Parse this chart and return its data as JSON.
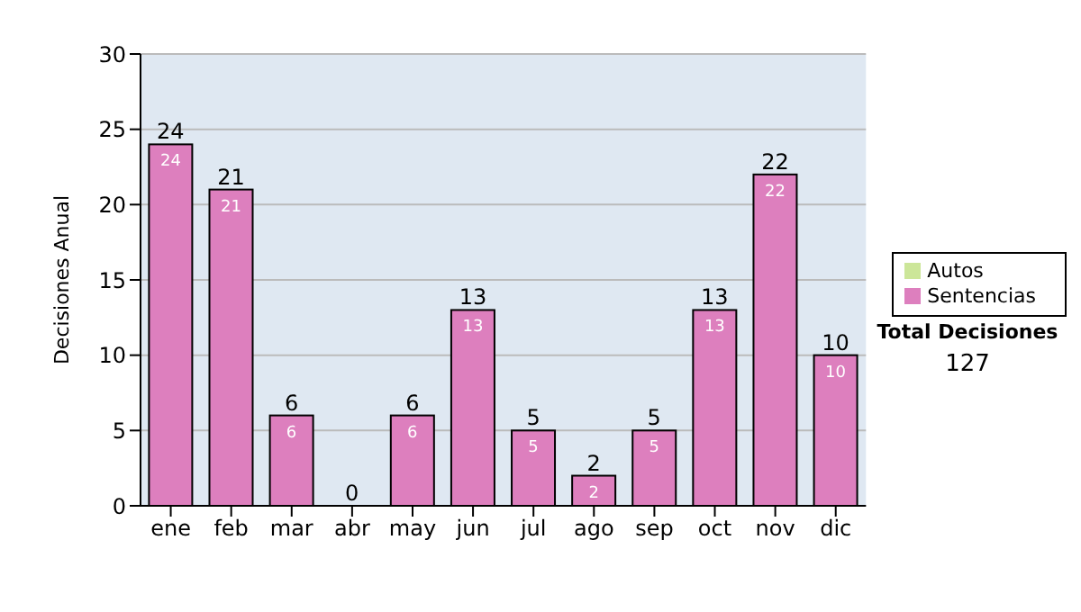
{
  "chart_data": {
    "type": "bar",
    "stacked": true,
    "ylabel": "Decisiones Anual",
    "categories": [
      "ene",
      "feb",
      "mar",
      "abr",
      "may",
      "jun",
      "jul",
      "ago",
      "sep",
      "oct",
      "nov",
      "dic"
    ],
    "series": [
      {
        "name": "Sentencias",
        "color": "#dd7fbe",
        "values": [
          24,
          21,
          6,
          0,
          6,
          13,
          5,
          2,
          5,
          13,
          22,
          10
        ],
        "value_labels": [
          "24",
          "21",
          "6",
          null,
          "6",
          "13",
          "5",
          "2",
          "5",
          "13",
          "22",
          "10"
        ]
      },
      {
        "name": "Autos",
        "color": "#cce699",
        "values": [
          0,
          0,
          0,
          0,
          0,
          0,
          0,
          0,
          0,
          0,
          0,
          0
        ]
      }
    ],
    "totals": [
      "24",
      "21",
      "6",
      "0",
      "6",
      "13",
      "5",
      "2",
      "5",
      "13",
      "22",
      "10"
    ],
    "ylim": [
      0,
      30
    ],
    "yticks": [
      0,
      5,
      10,
      15,
      20,
      25,
      30
    ],
    "grid": "y",
    "legend": "right",
    "annotations": [
      "Total Decisiones",
      "127"
    ]
  }
}
